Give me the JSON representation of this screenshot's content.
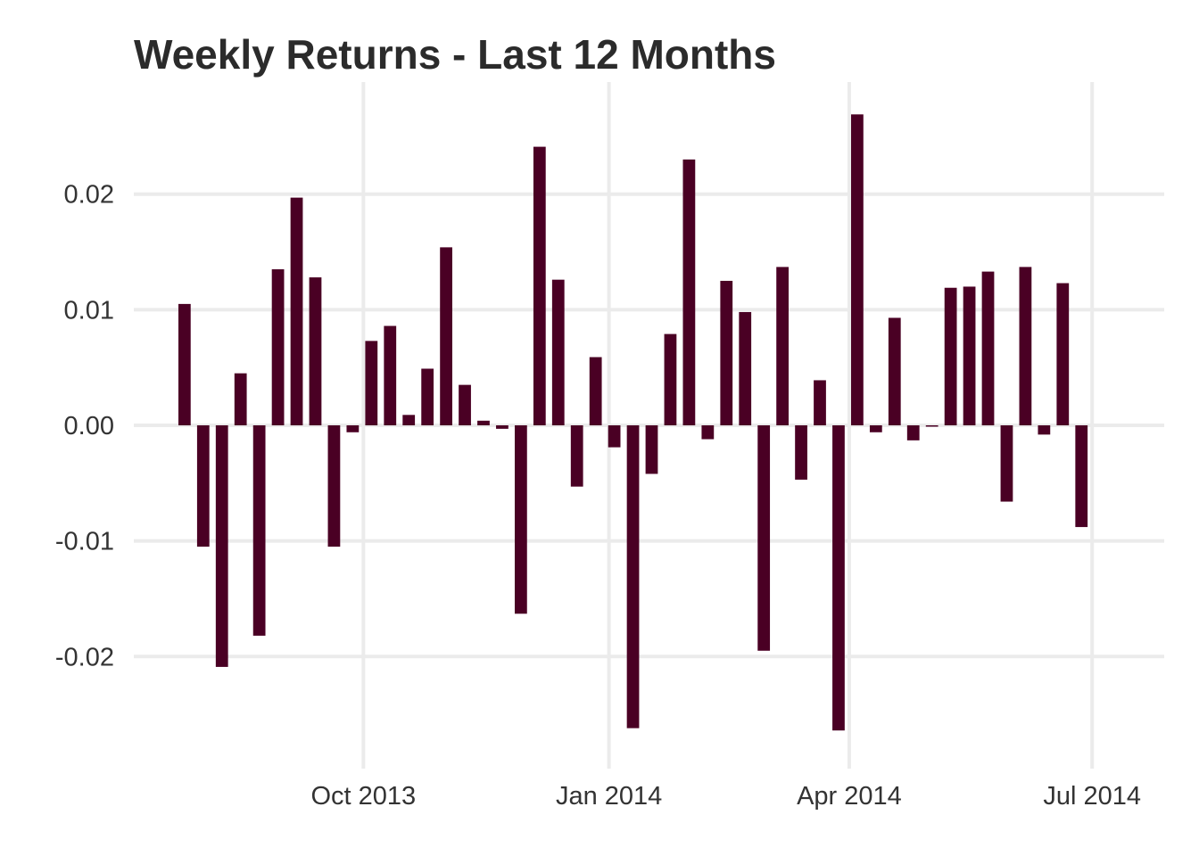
{
  "chart_data": {
    "type": "bar",
    "title": "Weekly Returns - Last 12 Months",
    "xlabel": "",
    "ylabel": "",
    "ylim": [
      -0.0297,
      0.0297
    ],
    "xlim": [
      "2013-07-07",
      "2014-07-28"
    ],
    "grid": true,
    "legend": "none",
    "bar_color": "#4a0024",
    "grid_color": "#ebebeb",
    "y_ticks": [
      {
        "value": -0.02,
        "label": "-0.02"
      },
      {
        "value": -0.01,
        "label": "-0.01"
      },
      {
        "value": 0.0,
        "label": "0.00"
      },
      {
        "value": 0.01,
        "label": "0.01"
      },
      {
        "value": 0.02,
        "label": "0.02"
      }
    ],
    "x_ticks": [
      {
        "date": "2013-10-01",
        "label": "Oct 2013"
      },
      {
        "date": "2014-01-01",
        "label": "Jan 2014"
      },
      {
        "date": "2014-04-01",
        "label": "Apr 2014"
      },
      {
        "date": "2014-07-01",
        "label": "Jul 2014"
      }
    ],
    "x": [
      "2013-07-26",
      "2013-08-02",
      "2013-08-09",
      "2013-08-16",
      "2013-08-23",
      "2013-08-30",
      "2013-09-06",
      "2013-09-13",
      "2013-09-20",
      "2013-09-27",
      "2013-10-04",
      "2013-10-11",
      "2013-10-18",
      "2013-10-25",
      "2013-11-01",
      "2013-11-08",
      "2013-11-15",
      "2013-11-22",
      "2013-11-29",
      "2013-12-06",
      "2013-12-13",
      "2013-12-20",
      "2013-12-27",
      "2014-01-03",
      "2014-01-10",
      "2014-01-17",
      "2014-01-24",
      "2014-01-31",
      "2014-02-07",
      "2014-02-14",
      "2014-02-21",
      "2014-02-28",
      "2014-03-07",
      "2014-03-14",
      "2014-03-21",
      "2014-03-28",
      "2014-04-04",
      "2014-04-11",
      "2014-04-18",
      "2014-04-25",
      "2014-05-02",
      "2014-05-09",
      "2014-05-16",
      "2014-05-23",
      "2014-05-30",
      "2014-06-06",
      "2014-06-13",
      "2014-06-20",
      "2014-06-27",
      "2014-07-04",
      "2014-07-11",
      "2014-07-18"
    ],
    "values": [
      0.0105,
      -0.0105,
      -0.0209,
      0.0045,
      -0.0182,
      0.0135,
      0.0197,
      0.0128,
      -0.0105,
      -0.0006,
      0.0073,
      0.0086,
      0.0009,
      0.0049,
      0.0154,
      0.0035,
      0.0004,
      -0.0003,
      -0.0163,
      0.0241,
      0.0126,
      -0.0053,
      0.0059,
      -0.0019,
      -0.0262,
      -0.0042,
      0.0079,
      0.023,
      -0.0012,
      0.0125,
      0.0098,
      -0.0195,
      0.0137,
      -0.0047,
      0.0039,
      -0.0264,
      0.0269,
      -0.0006,
      0.0093,
      -0.0013,
      -0.0001,
      0.0119,
      0.012,
      0.0133,
      -0.0066,
      0.0137,
      -0.0008,
      0.0123,
      -0.0088,
      0.0,
      0.0,
      0.0
    ]
  }
}
